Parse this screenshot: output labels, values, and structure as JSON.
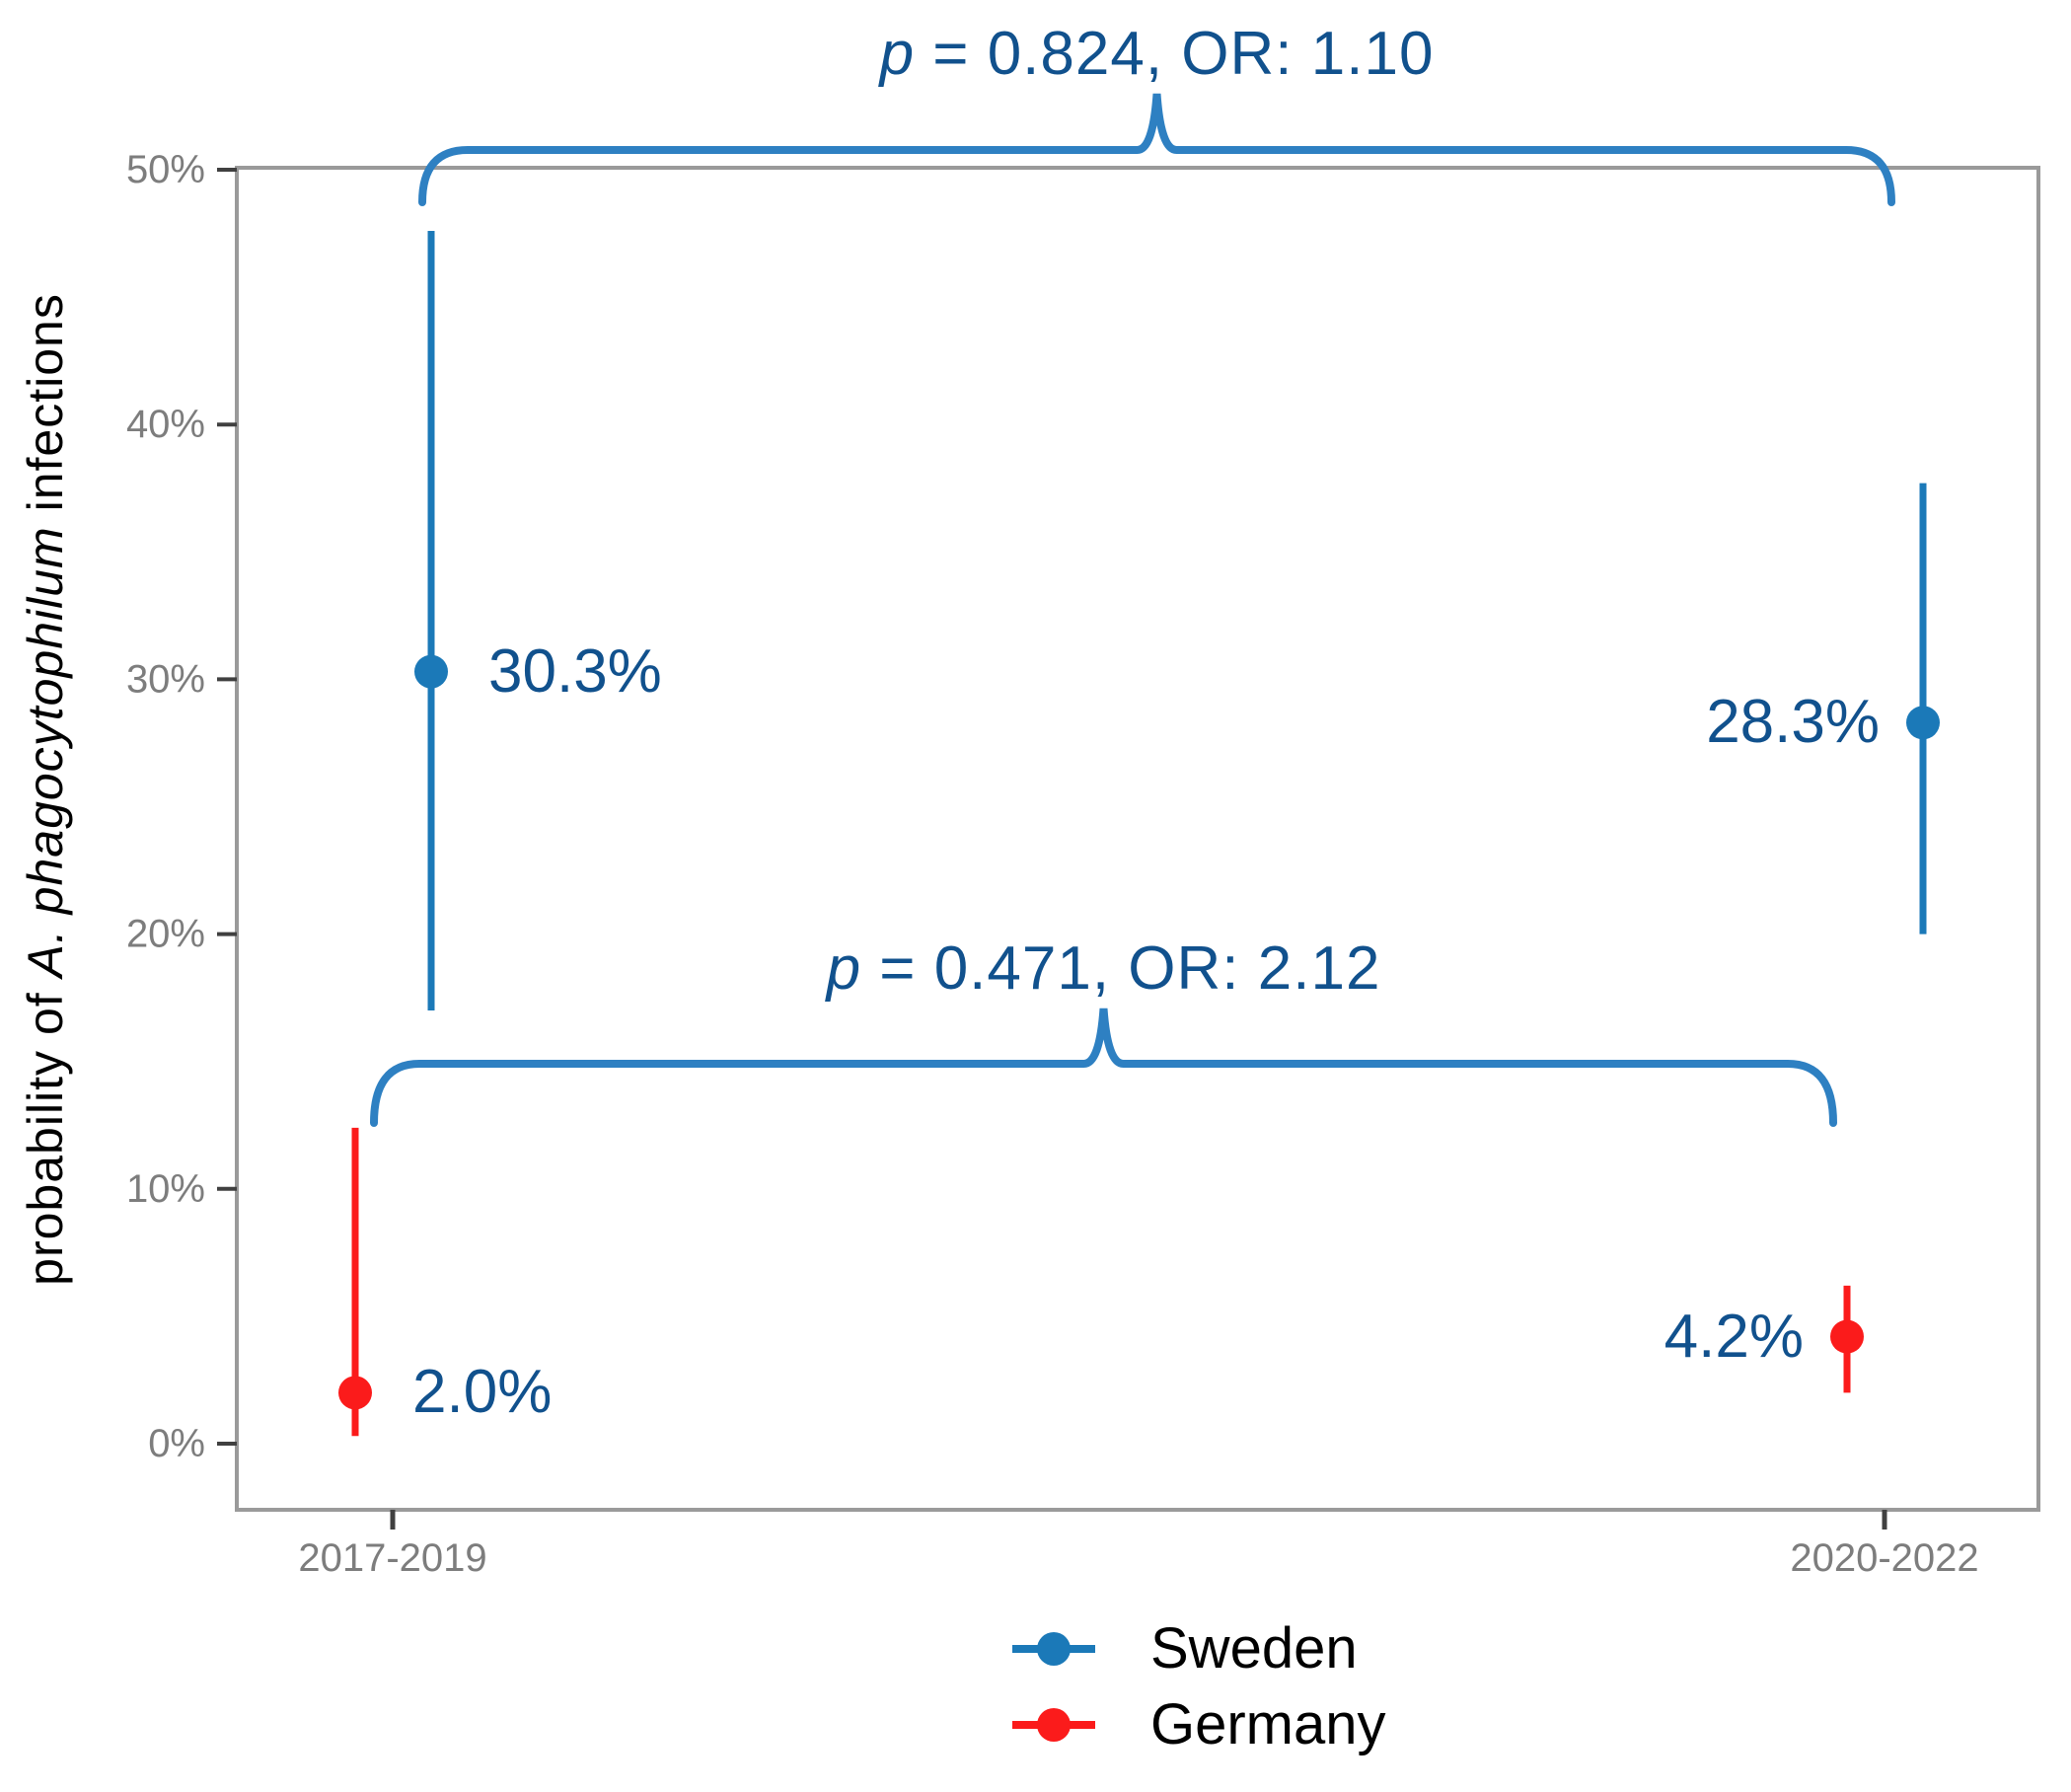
{
  "figure": {
    "y_axis": {
      "title_prefix": "probability of ",
      "title_italic": "A. phagocytophilum",
      "title_suffix": " infections"
    },
    "legend": {
      "items": [
        {
          "label": "Sweden",
          "color": "#1B79B8"
        },
        {
          "label": "Germany",
          "color": "#FB1B1B"
        }
      ]
    }
  },
  "chart_data": {
    "type": "scatter",
    "subtype": "point-range (dodged, with confidence intervals)",
    "title": "",
    "xlabel": "",
    "ylabel": "probability of A. phagocytophilum infections",
    "ylim": [
      0,
      50
    ],
    "yticks": [
      0,
      10,
      20,
      30,
      40,
      50
    ],
    "ytick_labels": [
      "0%",
      "10%",
      "20%",
      "30%",
      "40%",
      "50%"
    ],
    "categories": [
      "2017-2019",
      "2020-2022"
    ],
    "grid": "off",
    "legend_position": "bottom-center",
    "series": [
      {
        "name": "Sweden",
        "color": "#1B79B8",
        "values": [
          30.3,
          28.3
        ],
        "labels": [
          "30.3%",
          "28.3%"
        ],
        "ci": [
          [
            17.0,
            47.6
          ],
          [
            20.0,
            37.7
          ]
        ]
      },
      {
        "name": "Germany",
        "color": "#FB1B1B",
        "values": [
          2.0,
          4.2
        ],
        "labels": [
          "2.0%",
          "4.2%"
        ],
        "ci": [
          [
            0.3,
            12.4
          ],
          [
            2.0,
            6.2
          ]
        ]
      }
    ],
    "annotations": [
      {
        "p_italic": "p",
        "text": " = 0.824, OR: 1.10",
        "series": "Sweden",
        "spans": [
          "2017-2019",
          "2020-2022"
        ]
      },
      {
        "p_italic": "p",
        "text": " = 0.471, OR: 2.12",
        "series": "Germany",
        "spans": [
          "2017-2019",
          "2020-2022"
        ]
      }
    ]
  }
}
